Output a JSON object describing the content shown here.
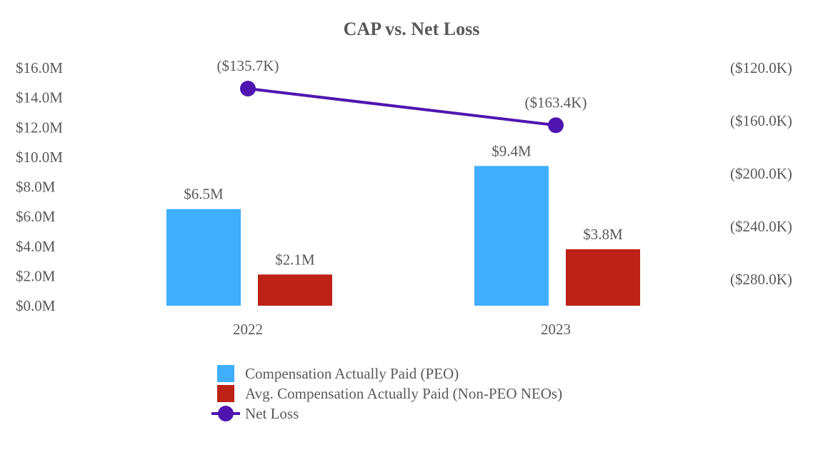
{
  "chart_data": {
    "type": "bar+line",
    "title": "CAP vs. Net Loss",
    "categories": [
      "2022",
      "2023"
    ],
    "left_axis": {
      "ylim": [
        0,
        16
      ],
      "ticks": [
        0,
        2,
        4,
        6,
        8,
        10,
        12,
        14,
        16
      ],
      "tick_labels": [
        "$0.0M",
        "$2.0M",
        "$4.0M",
        "$6.0M",
        "$8.0M",
        "$10.0M",
        "$12.0M",
        "$14.0M",
        "$16.0M"
      ],
      "unit": "$M"
    },
    "right_axis": {
      "ylim": [
        -300,
        -120
      ],
      "ticks": [
        -120,
        -160,
        -200,
        -240,
        -280
      ],
      "tick_labels": [
        "($120.0K)",
        "($160.0K)",
        "($200.0K)",
        "($240.0K)",
        "($280.0K)"
      ],
      "unit": "$K"
    },
    "series": [
      {
        "name": "Compensation Actually Paid (PEO)",
        "kind": "bar",
        "axis": "left",
        "color": "#3FAEFF",
        "values": [
          6.5,
          9.4
        ],
        "labels": [
          "$6.5M",
          "$9.4M"
        ]
      },
      {
        "name": "Avg. Compensation Actually Paid (Non-PEO NEOs)",
        "kind": "bar",
        "axis": "left",
        "color": "#BE2117",
        "values": [
          2.1,
          3.8
        ],
        "labels": [
          "$2.1M",
          "$3.8M"
        ]
      },
      {
        "name": "Net Loss",
        "kind": "line",
        "axis": "right",
        "color": "#5015B0",
        "values": [
          -135.7,
          -163.4
        ],
        "labels": [
          "($135.7K)",
          "($163.4K)"
        ]
      }
    ],
    "grid": false,
    "legend_position": "bottom"
  }
}
